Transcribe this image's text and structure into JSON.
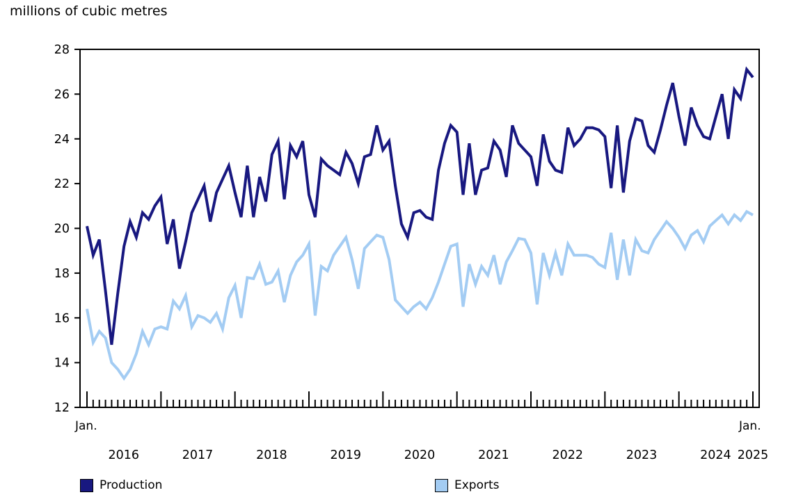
{
  "title": "millions of cubic metres",
  "axis": {
    "x_start_label": "Jan.",
    "x_end_label": "Jan."
  },
  "chart_data": {
    "type": "line",
    "title": "millions of cubic metres",
    "ylabel": "millions of cubic metres",
    "xlabel": "",
    "ylim": [
      12,
      28
    ],
    "y_ticks": [
      28,
      26,
      24,
      22,
      20,
      18,
      16,
      14,
      12
    ],
    "x_start_label": "Jan.",
    "x_end_label": "Jan.",
    "years": [
      "2016",
      "2017",
      "2018",
      "2019",
      "2020",
      "2021",
      "2022",
      "2023",
      "2024",
      "2025"
    ],
    "months": "monthly from January 2016 to January 2025",
    "grid": false,
    "legend_position": "bottom",
    "series": [
      {
        "name": "Production",
        "color": "#181880",
        "values": [
          20.1,
          18.8,
          19.5,
          17.2,
          14.8,
          17.1,
          19.2,
          20.3,
          19.6,
          20.7,
          20.4,
          21.0,
          21.4,
          19.3,
          20.4,
          18.2,
          19.4,
          20.7,
          21.3,
          21.9,
          20.3,
          21.6,
          22.2,
          22.8,
          21.6,
          20.5,
          22.8,
          20.5,
          22.3,
          21.2,
          23.3,
          23.9,
          21.3,
          23.7,
          23.2,
          23.9,
          21.5,
          20.5,
          23.1,
          22.8,
          22.6,
          22.4,
          23.4,
          22.9,
          22.0,
          23.2,
          23.3,
          24.6,
          23.5,
          23.9,
          21.9,
          20.2,
          19.6,
          20.7,
          20.8,
          20.5,
          20.4,
          22.6,
          23.8,
          24.6,
          24.3,
          21.5,
          23.8,
          21.5,
          22.6,
          22.7,
          23.9,
          23.5,
          22.3,
          24.6,
          23.8,
          23.5,
          23.2,
          21.9,
          24.2,
          23.0,
          22.6,
          22.5,
          24.5,
          23.7,
          24.0,
          24.5,
          24.5,
          24.4,
          24.1,
          21.8,
          24.6,
          21.6,
          23.9,
          24.9,
          24.8,
          23.7,
          23.4,
          24.4,
          25.5,
          26.5,
          25.0,
          23.7,
          25.4,
          24.6,
          24.1,
          24.0,
          25.0,
          26.0,
          24.0,
          26.2,
          25.8,
          27.1,
          26.75
        ]
      },
      {
        "name": "Exports",
        "color": "#a3ccf3",
        "values": [
          16.4,
          14.9,
          15.4,
          15.1,
          14.0,
          13.7,
          13.3,
          13.7,
          14.4,
          15.4,
          14.8,
          15.5,
          15.6,
          15.5,
          16.75,
          16.4,
          17.0,
          15.6,
          16.1,
          16.0,
          15.8,
          16.2,
          15.5,
          16.9,
          17.45,
          16.0,
          17.8,
          17.75,
          18.4,
          17.5,
          17.6,
          18.1,
          16.7,
          17.9,
          18.5,
          18.8,
          19.3,
          16.1,
          18.3,
          18.1,
          18.8,
          19.2,
          19.6,
          18.6,
          17.3,
          19.1,
          19.4,
          19.7,
          19.6,
          18.6,
          16.8,
          16.5,
          16.2,
          16.5,
          16.7,
          16.4,
          16.9,
          17.6,
          18.4,
          19.2,
          19.3,
          16.5,
          18.4,
          17.5,
          18.3,
          17.9,
          18.8,
          17.5,
          18.5,
          19.0,
          19.55,
          19.5,
          18.9,
          16.6,
          18.9,
          17.9,
          18.9,
          17.9,
          19.3,
          18.8,
          18.8,
          18.8,
          18.7,
          18.4,
          18.25,
          19.8,
          17.7,
          19.5,
          17.9,
          19.5,
          19.0,
          18.9,
          19.5,
          19.9,
          20.3,
          20.0,
          19.6,
          19.1,
          19.7,
          19.9,
          19.4,
          20.1,
          20.35,
          20.6,
          20.2,
          20.6,
          20.35,
          20.75,
          20.6
        ]
      }
    ]
  },
  "legend": {
    "production_label": "Production",
    "exports_label": "Exports"
  }
}
